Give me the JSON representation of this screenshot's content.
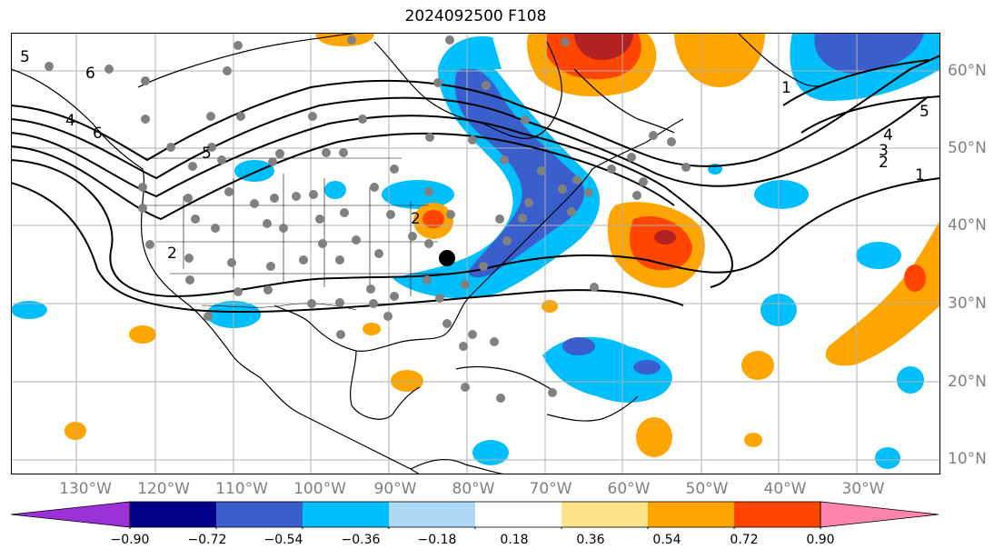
{
  "title": "2024092500 F108",
  "map": {
    "longitude_labels": [
      "130°W",
      "120°W",
      "110°W",
      "100°W",
      "90°W",
      "80°W",
      "70°W",
      "60°W",
      "50°W",
      "40°W",
      "30°W"
    ],
    "latitude_labels": [
      "60°N",
      "50°N",
      "40°N",
      "30°N",
      "20°N",
      "10°N"
    ],
    "contour_labels": [
      "5",
      "6",
      "5",
      "6",
      "4",
      "2",
      "2",
      "4",
      "3",
      "2",
      "1",
      "5",
      "1"
    ],
    "colors": {
      "land_outline": "#000000",
      "gridline": "#b0b0b0",
      "station_dot": "#808080",
      "marker": "#000000",
      "contour": "#000000"
    }
  },
  "colorbar": {
    "tick_labels": [
      "−0.90",
      "−0.72",
      "−0.54",
      "−0.36",
      "−0.18",
      "0.18",
      "0.36",
      "0.54",
      "0.72",
      "0.90"
    ],
    "colors": [
      "#9b30d6",
      "#00008b",
      "#3a5fcd",
      "#00bfff",
      "#add8f6",
      "#ffffff",
      "#fce38a",
      "#ffa500",
      "#ff4500",
      "#b22222",
      "#ff85b0"
    ]
  }
}
